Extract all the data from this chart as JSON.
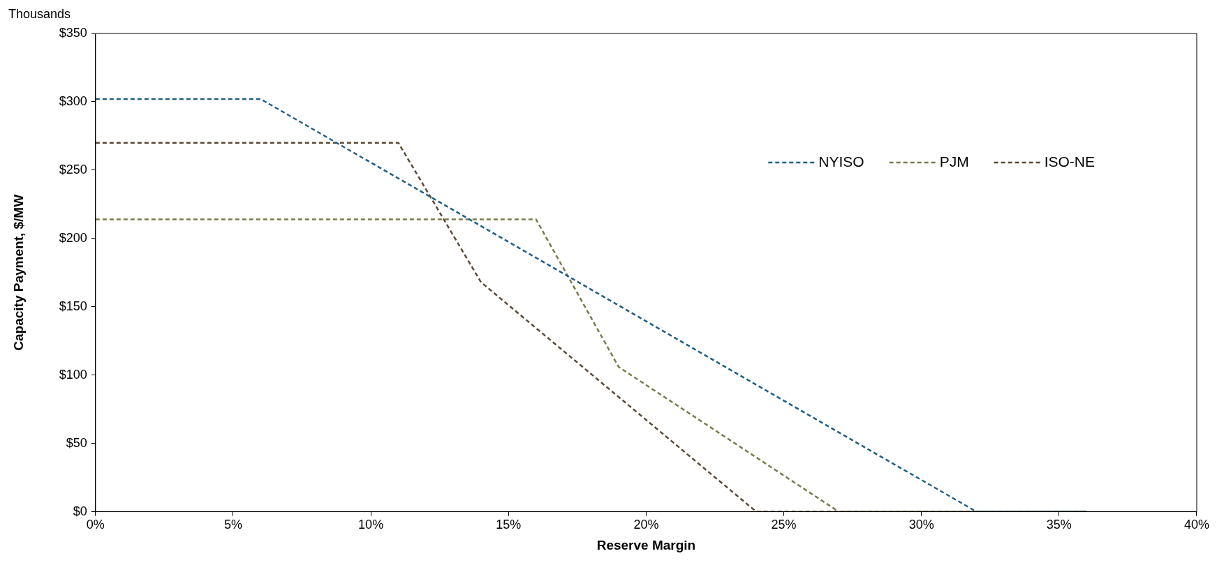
{
  "chart_data": {
    "type": "line",
    "xlabel": "Reserve Margin",
    "ylabel": "Capacity Payment, $/MW",
    "annotations": [
      "Thousands"
    ],
    "xlim": [
      0,
      40
    ],
    "xticks": [
      {
        "value": 0,
        "label": "0%"
      },
      {
        "value": 5,
        "label": "5%"
      },
      {
        "value": 10,
        "label": "10%"
      },
      {
        "value": 15,
        "label": "15%"
      },
      {
        "value": 20,
        "label": "20%"
      },
      {
        "value": 25,
        "label": "25%"
      },
      {
        "value": 30,
        "label": "30%"
      },
      {
        "value": 35,
        "label": "35%"
      },
      {
        "value": 40,
        "label": "40%"
      }
    ],
    "ylim": [
      0,
      350
    ],
    "yticks": [
      {
        "value": 0,
        "label": "$0"
      },
      {
        "value": 50,
        "label": "$50"
      },
      {
        "value": 100,
        "label": "$100"
      },
      {
        "value": 150,
        "label": "$150"
      },
      {
        "value": 200,
        "label": "$200"
      },
      {
        "value": 250,
        "label": "$250"
      },
      {
        "value": 300,
        "label": "$300"
      },
      {
        "value": 350,
        "label": "$350"
      }
    ],
    "grid": false,
    "legend": "top right",
    "marker": "none",
    "line_style": "dashed",
    "series": [
      {
        "name": "NYISO",
        "color": "#1f5f86",
        "x": [
          0,
          6,
          32,
          36
        ],
        "values": [
          302,
          302,
          0,
          0
        ]
      },
      {
        "name": "PJM",
        "color": "#7a7a4a",
        "x": [
          0,
          16,
          19,
          27,
          36
        ],
        "values": [
          214,
          214,
          106,
          0,
          0
        ]
      },
      {
        "name": "ISO-NE",
        "color": "#5b4a35",
        "x": [
          0,
          11,
          14,
          24,
          36
        ],
        "values": [
          270,
          270,
          168,
          0,
          0
        ]
      }
    ]
  }
}
